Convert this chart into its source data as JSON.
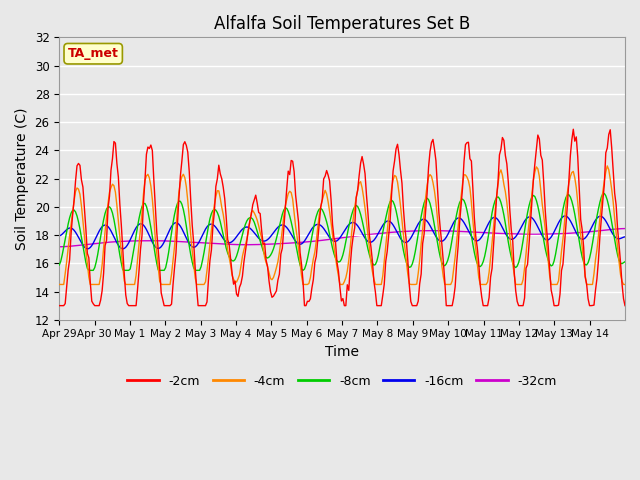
{
  "title": "Alfalfa Soil Temperatures Set B",
  "xlabel": "Time",
  "ylabel": "Soil Temperature (C)",
  "ylim": [
    12,
    32
  ],
  "annotation": "TA_met",
  "annotation_color": "#cc0000",
  "annotation_bg": "#ffffcc",
  "fig_bg": "#e8e8e8",
  "plot_bg": "#e8e8e8",
  "line_colors": {
    "-2cm": "#ff0000",
    "-4cm": "#ff8800",
    "-8cm": "#00cc00",
    "-16cm": "#0000ee",
    "-32cm": "#cc00cc"
  },
  "x_ticks": [
    "Apr 29",
    "Apr 30",
    "May 1",
    "May 2",
    "May 3",
    "May 4",
    "May 5",
    "May 6",
    "May 7",
    "May 8",
    "May 9",
    "May 10",
    "May 11",
    "May 12",
    "May 13",
    "May 14"
  ],
  "legend_entries": [
    "-2cm",
    "-4cm",
    "-8cm",
    "-16cm",
    "-32cm"
  ],
  "yticks": [
    12,
    14,
    16,
    18,
    20,
    22,
    24,
    26,
    28,
    30,
    32
  ]
}
